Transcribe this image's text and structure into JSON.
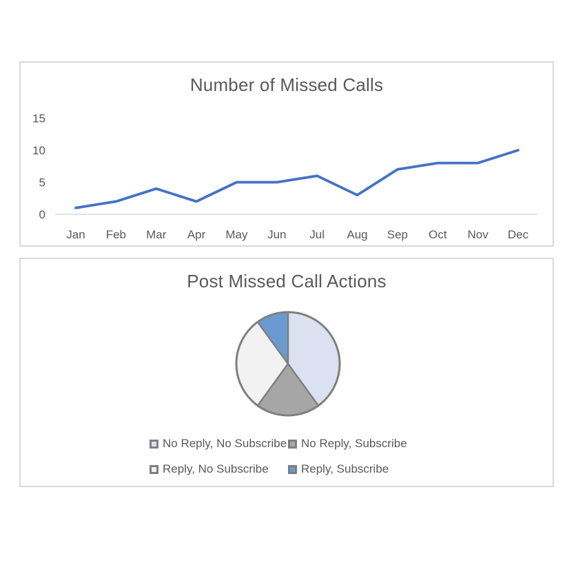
{
  "accent_colors": {
    "line_blue": "#4472C4",
    "axis_gray": "#D9D9D9",
    "text_gray": "#595959",
    "pie_border_gray": "#7F7F7F"
  },
  "chart_data": [
    {
      "type": "line",
      "title": "Number of Missed Calls",
      "categories": [
        "Jan",
        "Feb",
        "Mar",
        "Apr",
        "May",
        "Jun",
        "Jul",
        "Aug",
        "Sep",
        "Oct",
        "Nov",
        "Dec"
      ],
      "values": [
        1,
        2,
        4,
        2,
        5,
        5,
        6,
        3,
        7,
        8,
        8,
        10
      ],
      "yticks": [
        0,
        5,
        10,
        15
      ],
      "ylim": [
        0,
        15
      ],
      "xlabel": "",
      "ylabel": "",
      "grid": false,
      "legend_position": "none",
      "line_color": "#4472C4",
      "axis_line_color": "#D9D9D9",
      "label_color": "#595959"
    },
    {
      "type": "pie",
      "title": "Post Missed Call Actions",
      "labels": [
        "No Reply, No Subscribe",
        "No Reply, Subscribe",
        "Reply, No Subscribe",
        "Reply, Subscribe"
      ],
      "values": [
        40,
        20,
        30,
        10
      ],
      "value_unit": "percent",
      "colors": [
        "#DBE1F0",
        "#A6A6A6",
        "#F2F2F2",
        "#6B9AD0"
      ],
      "slice_border_color": "#7F7F7F",
      "legend_position": "bottom",
      "label_color": "#595959"
    }
  ]
}
